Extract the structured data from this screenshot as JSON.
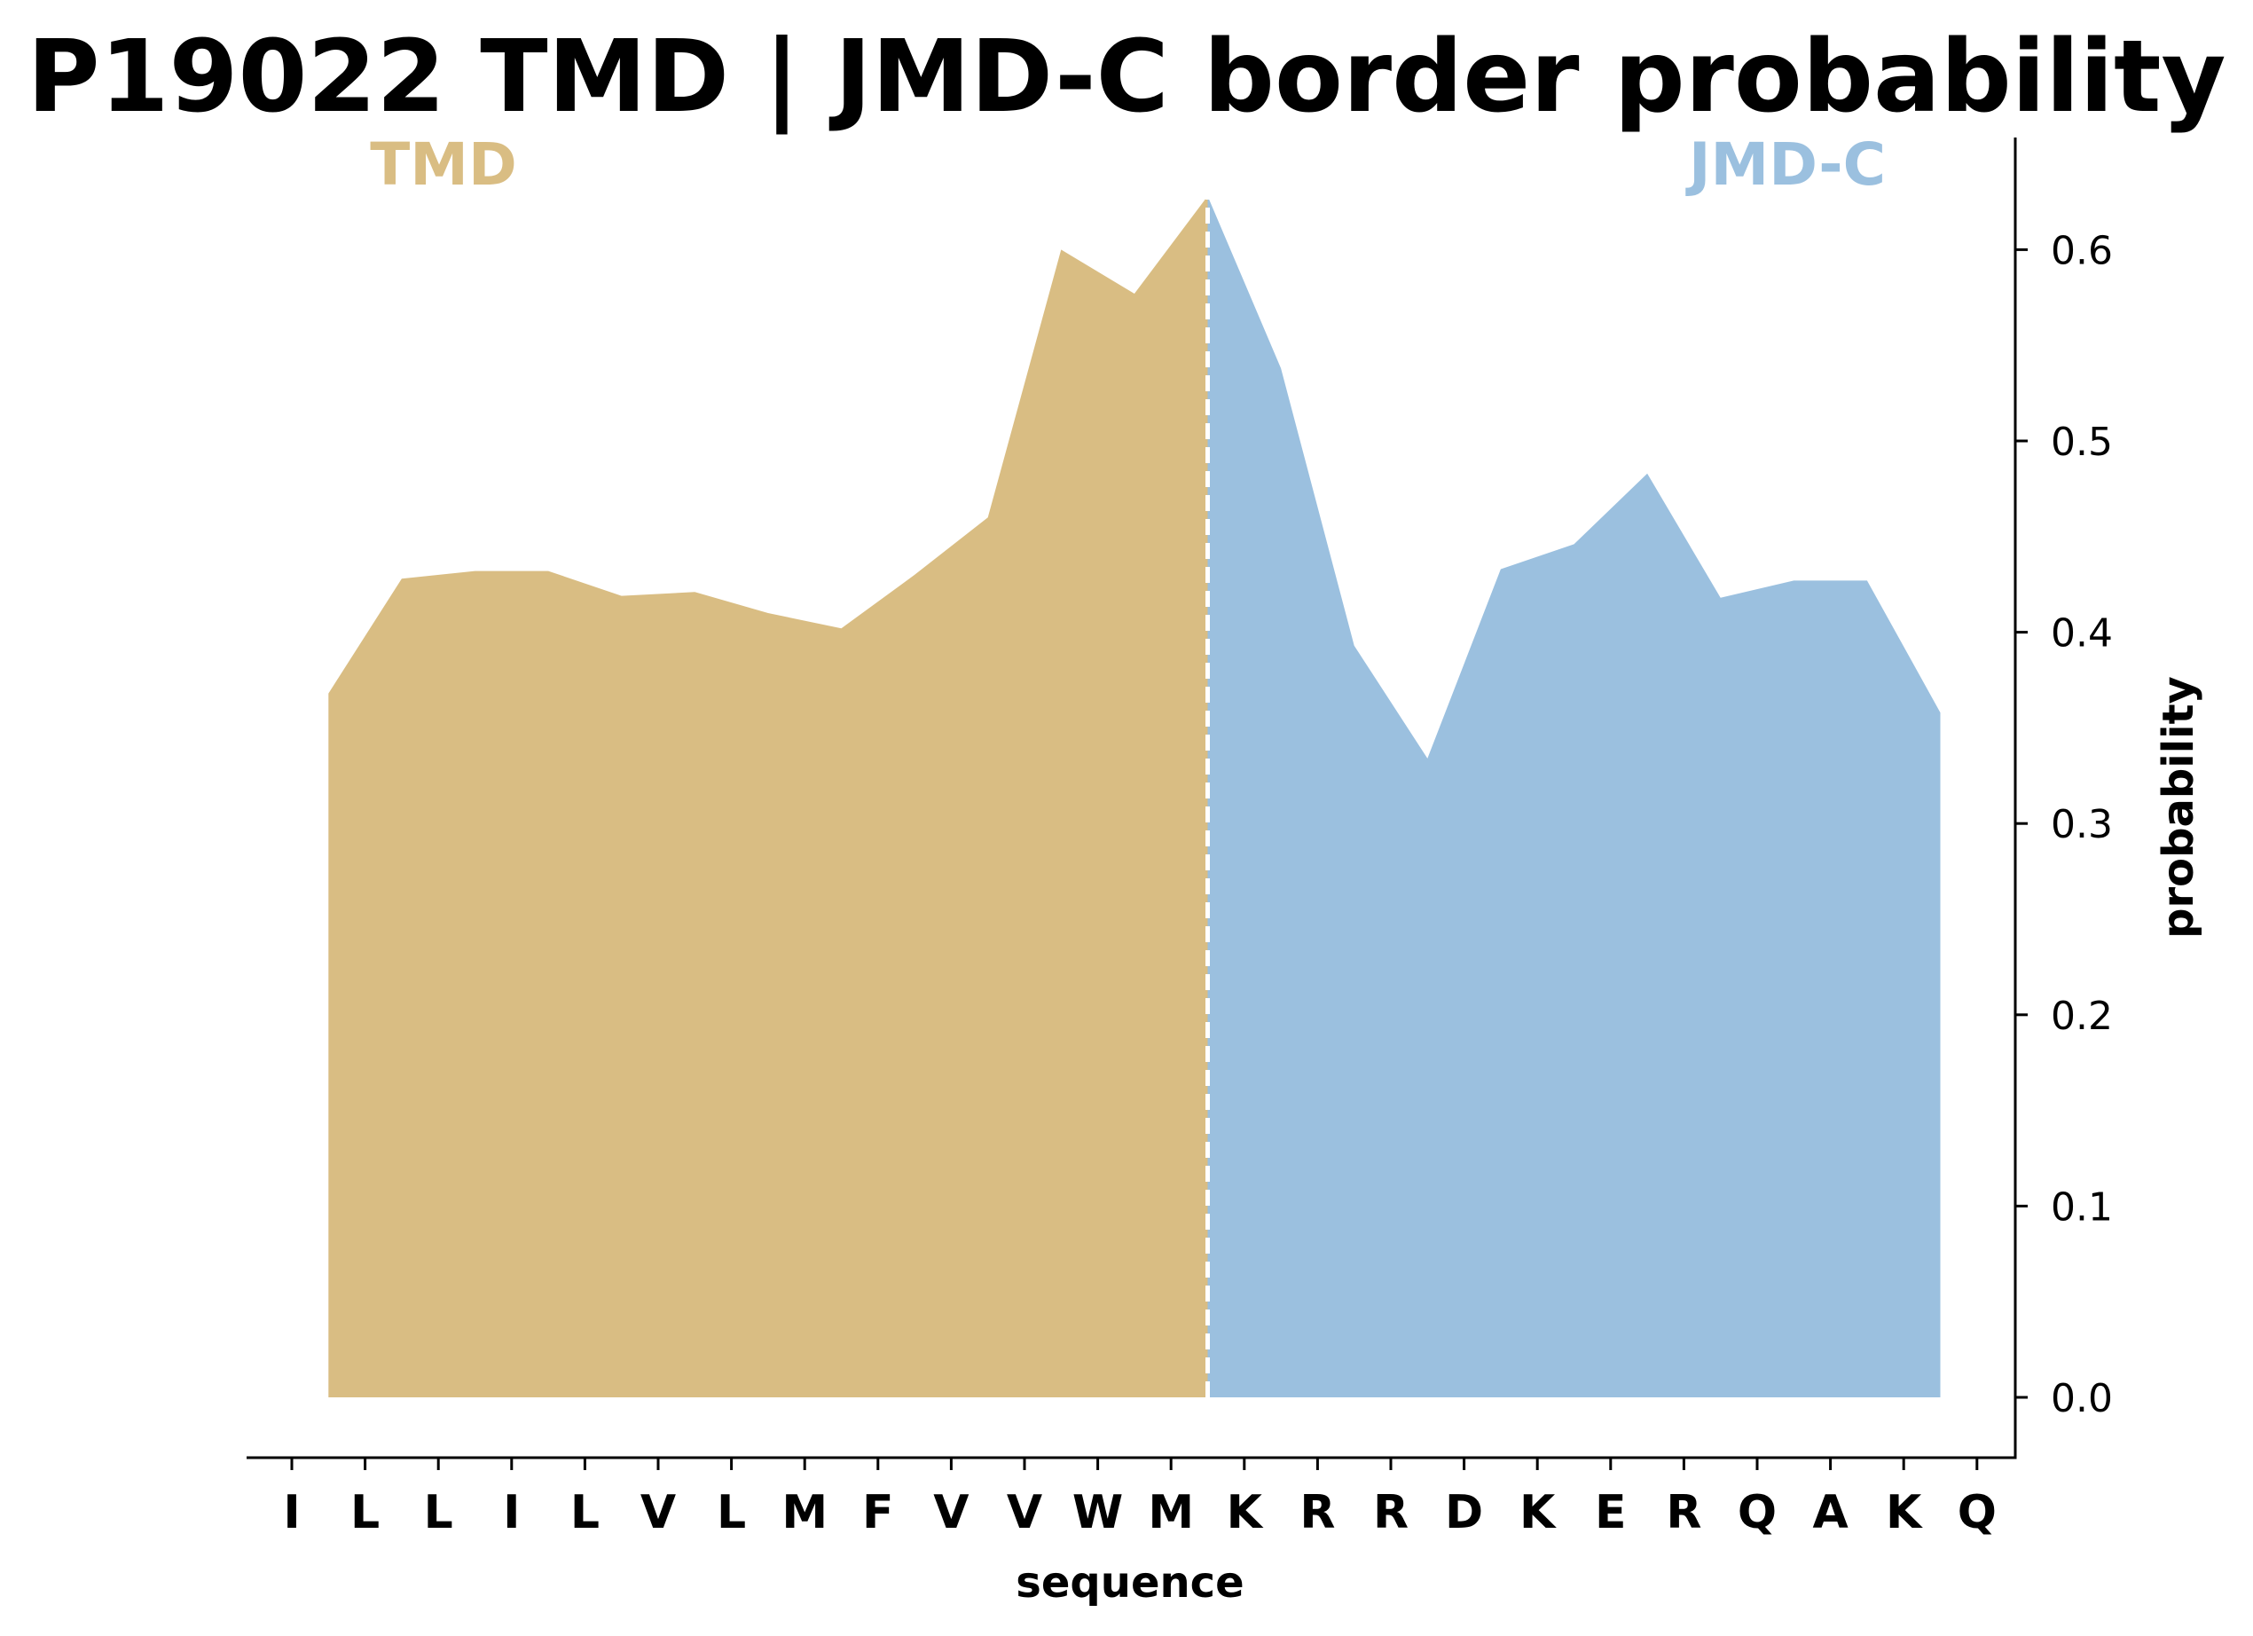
{
  "chart_data": {
    "type": "area",
    "title": "P19022 TMD | JMD-C border probability",
    "xlabel": "sequence",
    "ylabel": "probability",
    "ylim": [
      -0.031,
      0.66
    ],
    "yticks": [
      "0.0",
      "0.1",
      "0.2",
      "0.3",
      "0.4",
      "0.5",
      "0.6"
    ],
    "x_tick_labels": [
      "I",
      "L",
      "L",
      "I",
      "L",
      "V",
      "L",
      "M",
      "F",
      "V",
      "V",
      "W",
      "M",
      "K",
      "R",
      "R",
      "D",
      "K",
      "E",
      "R",
      "Q",
      "A",
      "K",
      "Q"
    ],
    "grid": false,
    "border_position": 12.5,
    "series": [
      {
        "name": "TMD",
        "color": "#d9bd83",
        "x": [
          0.5,
          1.5,
          2.5,
          3.5,
          4.5,
          5.5,
          6.5,
          7.5,
          8.5,
          9.5,
          10.5,
          11.5,
          12.5
        ],
        "values": [
          0.368,
          0.428,
          0.432,
          0.432,
          0.419,
          0.421,
          0.41,
          0.402,
          0.43,
          0.46,
          0.6,
          0.577,
          0.628
        ]
      },
      {
        "name": "JMD-C",
        "color": "#9bc0df",
        "x": [
          12.5,
          13.5,
          14.5,
          15.5,
          16.5,
          17.5,
          18.5,
          19.5,
          20.5,
          21.5,
          22.5
        ],
        "values": [
          0.628,
          0.538,
          0.393,
          0.334,
          0.433,
          0.446,
          0.483,
          0.418,
          0.427,
          0.427,
          0.358
        ]
      }
    ],
    "region_labels": [
      {
        "text": "TMD",
        "color": "#d9bd83"
      },
      {
        "text": "JMD-C",
        "color": "#9bc0df"
      }
    ]
  }
}
